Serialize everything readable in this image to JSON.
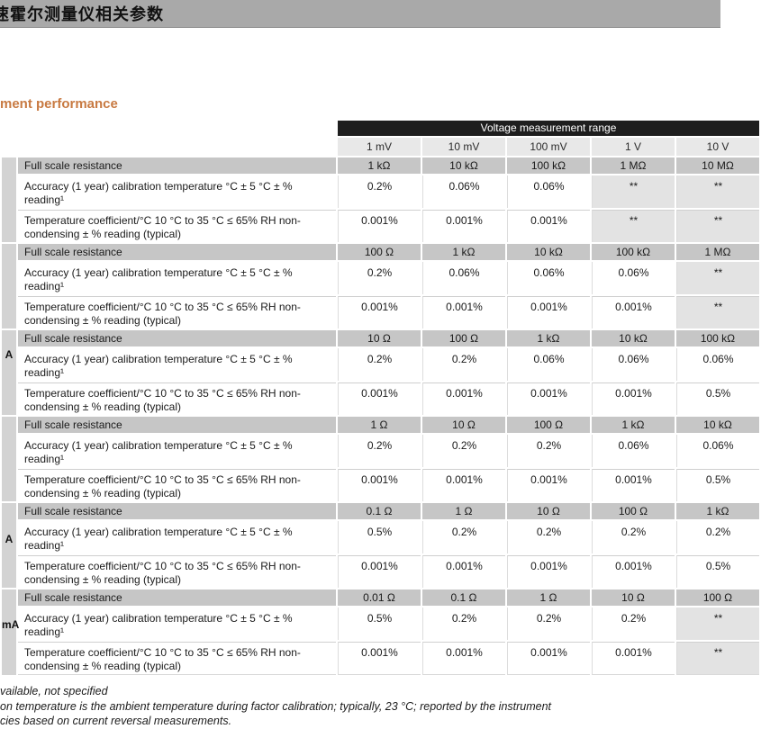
{
  "page": {
    "top_bar_title": "速霍尔测量仪相关参数",
    "section_heading": "ment performance"
  },
  "colors": {
    "heading_accent": "#c87a42",
    "banner_bg": "#1e1e1e",
    "topbar_bg": "#a9a9a9",
    "group_row_bg": "#c6c6c6",
    "shaded_cell_bg": "#e3e3e3"
  },
  "table": {
    "header_banner": "Voltage measurement range",
    "column_headers": [
      "1 mV",
      "10 mV",
      "100 mV",
      "1 V",
      "10 V"
    ],
    "row_labels": {
      "full_scale": "Full scale resistance",
      "accuracy": "Accuracy (1 year) calibration temperature °C ± 5 °C ± % reading¹",
      "temp_coeff": "Temperature coefficient/°C 10 °C to 35 °C ≤ 65% RH non-condensing ± % reading (typical)"
    },
    "groups": [
      {
        "label": "",
        "full_scale": [
          "1 kΩ",
          "10 kΩ",
          "100 kΩ",
          "1 MΩ",
          "10 MΩ"
        ],
        "accuracy": [
          "0.2%",
          "0.06%",
          "0.06%",
          "**",
          "**"
        ],
        "temp": [
          "0.001%",
          "0.001%",
          "0.001%",
          "**",
          "**"
        ]
      },
      {
        "label": "",
        "full_scale": [
          "100 Ω",
          "1 kΩ",
          "10 kΩ",
          "100 kΩ",
          "1 MΩ"
        ],
        "accuracy": [
          "0.2%",
          "0.06%",
          "0.06%",
          "0.06%",
          "**"
        ],
        "temp": [
          "0.001%",
          "0.001%",
          "0.001%",
          "0.001%",
          "**"
        ]
      },
      {
        "label": "A",
        "full_scale": [
          "10 Ω",
          "100 Ω",
          "1 kΩ",
          "10 kΩ",
          "100 kΩ"
        ],
        "accuracy": [
          "0.2%",
          "0.2%",
          "0.06%",
          "0.06%",
          "0.06%"
        ],
        "temp": [
          "0.001%",
          "0.001%",
          "0.001%",
          "0.001%",
          "0.5%"
        ]
      },
      {
        "label": "",
        "full_scale": [
          "1 Ω",
          "10 Ω",
          "100 Ω",
          "1 kΩ",
          "10 kΩ"
        ],
        "accuracy": [
          "0.2%",
          "0.2%",
          "0.2%",
          "0.06%",
          "0.06%"
        ],
        "temp": [
          "0.001%",
          "0.001%",
          "0.001%",
          "0.001%",
          "0.5%"
        ]
      },
      {
        "label": "A",
        "full_scale": [
          "0.1 Ω",
          "1 Ω",
          "10 Ω",
          "100 Ω",
          "1 kΩ"
        ],
        "accuracy": [
          "0.5%",
          "0.2%",
          "0.2%",
          "0.2%",
          "0.2%"
        ],
        "temp": [
          "0.001%",
          "0.001%",
          "0.001%",
          "0.001%",
          "0.5%"
        ]
      },
      {
        "label": "mA",
        "full_scale": [
          "0.01 Ω",
          "0.1 Ω",
          "1 Ω",
          "10 Ω",
          "100 Ω"
        ],
        "accuracy": [
          "0.5%",
          "0.2%",
          "0.2%",
          "0.2%",
          "**"
        ],
        "temp": [
          "0.001%",
          "0.001%",
          "0.001%",
          "0.001%",
          "**"
        ]
      }
    ]
  },
  "footnotes": [
    "vailable, not specified",
    "on temperature is the ambient temperature during factor calibration; typically, 23 °C; reported by the instrument",
    "cies based on current reversal measurements."
  ]
}
